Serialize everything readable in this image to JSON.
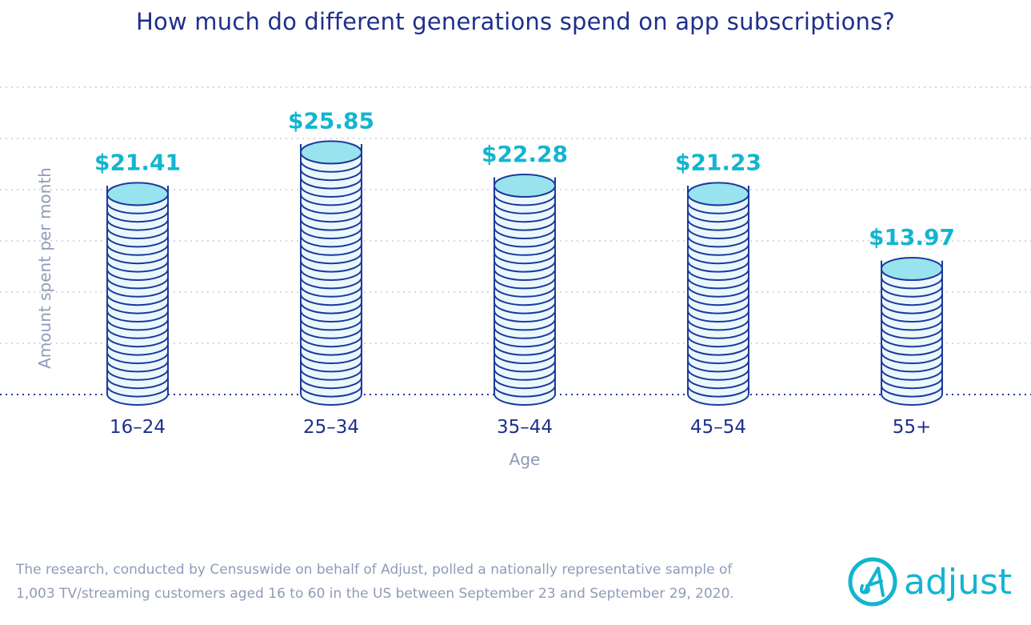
{
  "title": "How much do different generations spend on app subscriptions?",
  "chart_data": {
    "type": "bar",
    "title": "How much do different generations spend on app subscriptions?",
    "xlabel": "Age",
    "ylabel": "Amount spent per month",
    "categories": [
      "16–24",
      "25–34",
      "35–44",
      "45–54",
      "55+"
    ],
    "values": [
      21.41,
      25.85,
      22.28,
      21.23,
      13.97
    ],
    "data_labels": [
      "$21.41",
      "$25.85",
      "$22.28",
      "$21.23",
      "$13.97"
    ],
    "grid": true,
    "bar_style": "coin stacks",
    "colors": {
      "outline": "#1e3a9a",
      "coin_fill": "#eaf8fd",
      "top_fill": "#98e3ee",
      "label": "#13b5d0",
      "grid": "#c7cbd6",
      "axis_text": "#1e2f8c",
      "axis_title": "#8f9bb8"
    }
  },
  "footnote": {
    "line1": "The research, conducted by Censuswide on behalf of Adjust, polled a nationally representative sample of",
    "line2": "1,003 TV/streaming customers aged 16 to 60 in the US between September 23 and September 29, 2020."
  },
  "logo": {
    "text": "adjust",
    "color": "#13b5d0"
  }
}
